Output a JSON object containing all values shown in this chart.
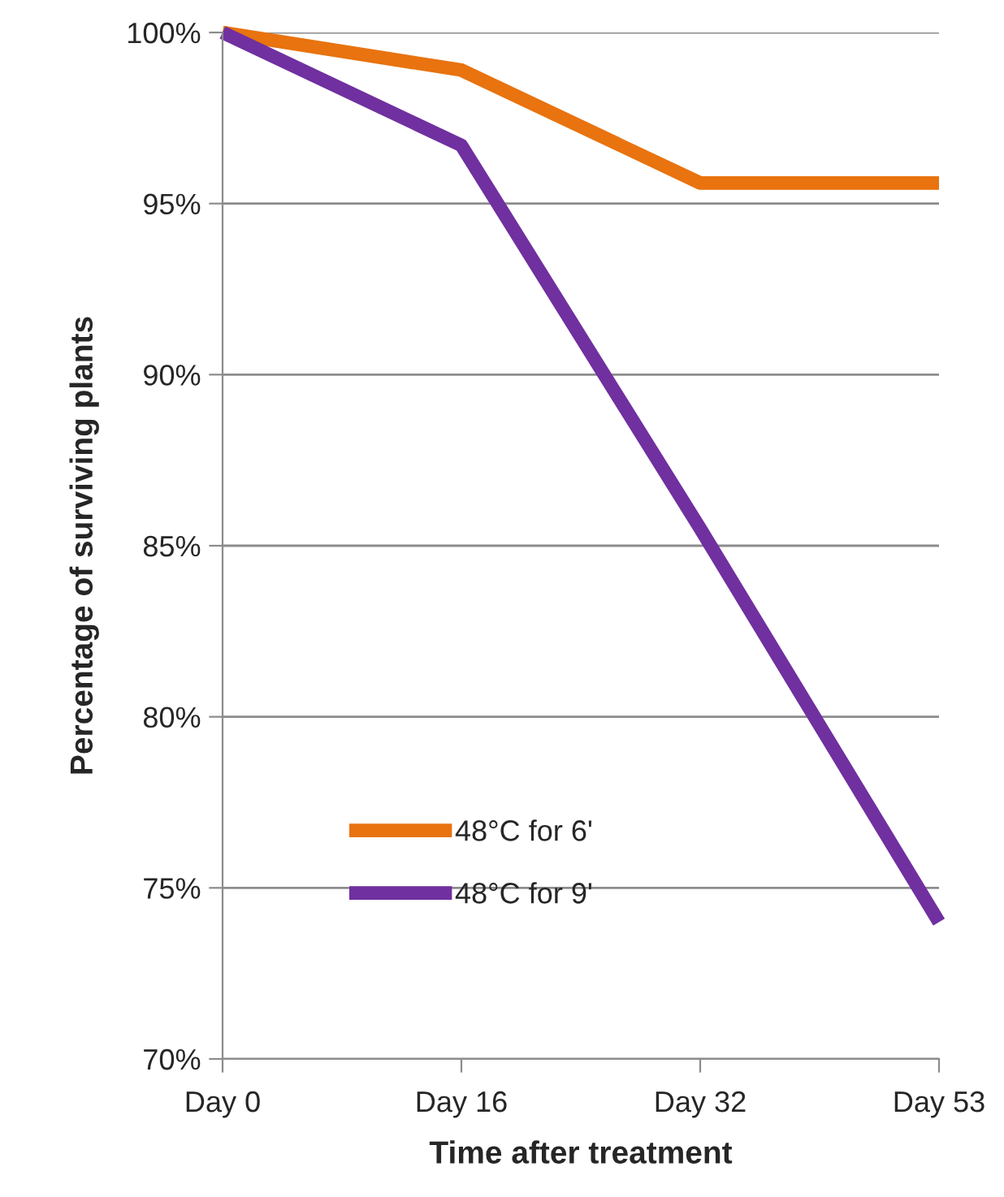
{
  "chart_data": {
    "type": "line",
    "xlabel": "Time after treatment",
    "ylabel": "Percentage of surviving plants",
    "categories": [
      "Day 0",
      "Day 16",
      "Day 32",
      "Day 53"
    ],
    "series": [
      {
        "name": "48°C for 6'",
        "color": "#e8730f",
        "values": [
          100,
          98.9,
          95.6,
          95.6
        ]
      },
      {
        "name": "48°C for 9'",
        "color": "#7030a0",
        "values": [
          100,
          96.7,
          85.5,
          74.0
        ]
      }
    ],
    "ylim": [
      70,
      100
    ],
    "yticks": [
      {
        "value": 70,
        "label": "70%"
      },
      {
        "value": 75,
        "label": "75%"
      },
      {
        "value": 80,
        "label": "80%"
      },
      {
        "value": 85,
        "label": "85%"
      },
      {
        "value": 90,
        "label": "90%"
      },
      {
        "value": 95,
        "label": "95%"
      },
      {
        "value": 100,
        "label": "100%"
      }
    ],
    "grid": "y",
    "legend": "bottom left",
    "marker": "none",
    "line_style": "solid"
  }
}
